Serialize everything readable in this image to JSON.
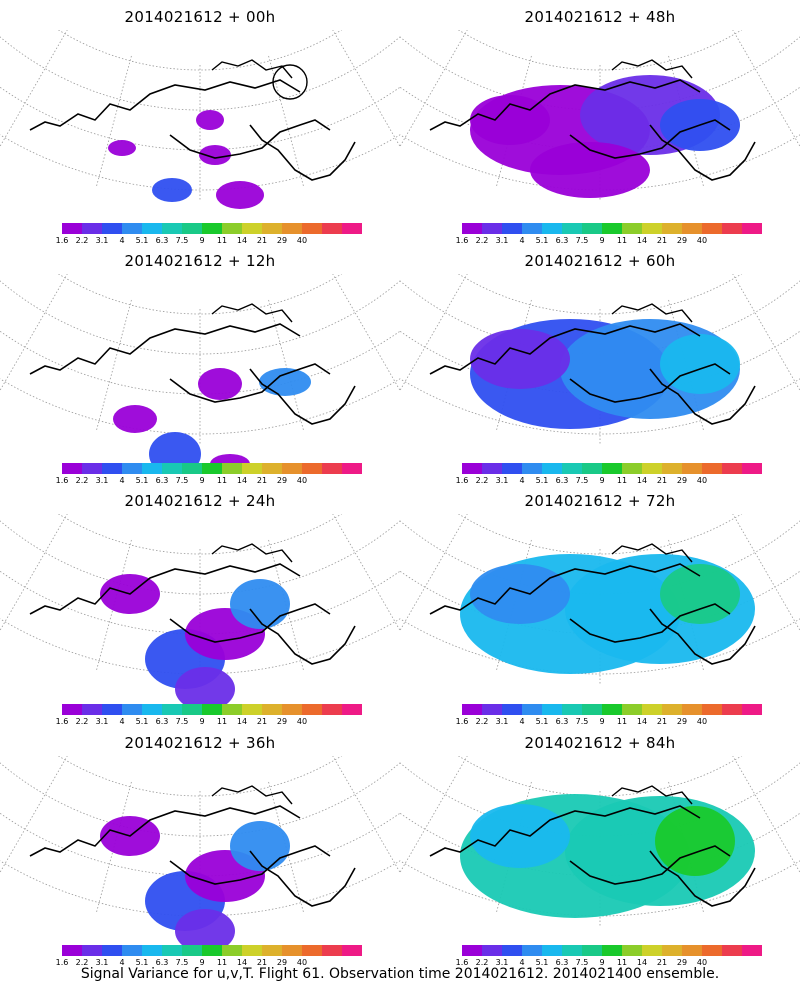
{
  "panels": [
    {
      "title": "2014021612 + 00h"
    },
    {
      "title": "2014021612 + 48h"
    },
    {
      "title": "2014021612 + 12h"
    },
    {
      "title": "2014021612 + 60h"
    },
    {
      "title": "2014021612 + 24h"
    },
    {
      "title": "2014021612 + 72h"
    },
    {
      "title": "2014021612 + 36h"
    },
    {
      "title": "2014021612 + 84h"
    }
  ],
  "colorbar": {
    "colors": [
      "#9a00d8",
      "#6a2ee8",
      "#2f4ff0",
      "#2f8cf0",
      "#19b8ee",
      "#19c9b4",
      "#19c987",
      "#19c92c",
      "#8ccd2a",
      "#cdd12a",
      "#ddb12c",
      "#e6912c",
      "#ec6a2c",
      "#ec3c4e",
      "#ee1a86"
    ],
    "tick_labels": [
      "1.6",
      "2.2",
      "3.1",
      "4",
      "5.1",
      "6.3",
      "7.5",
      "9",
      "11",
      "14",
      "21",
      "29",
      "40"
    ]
  },
  "caption": "Signal Variance for u,v,T. Flight 61. Observation time 2014021612. 2014021400 ensemble."
}
